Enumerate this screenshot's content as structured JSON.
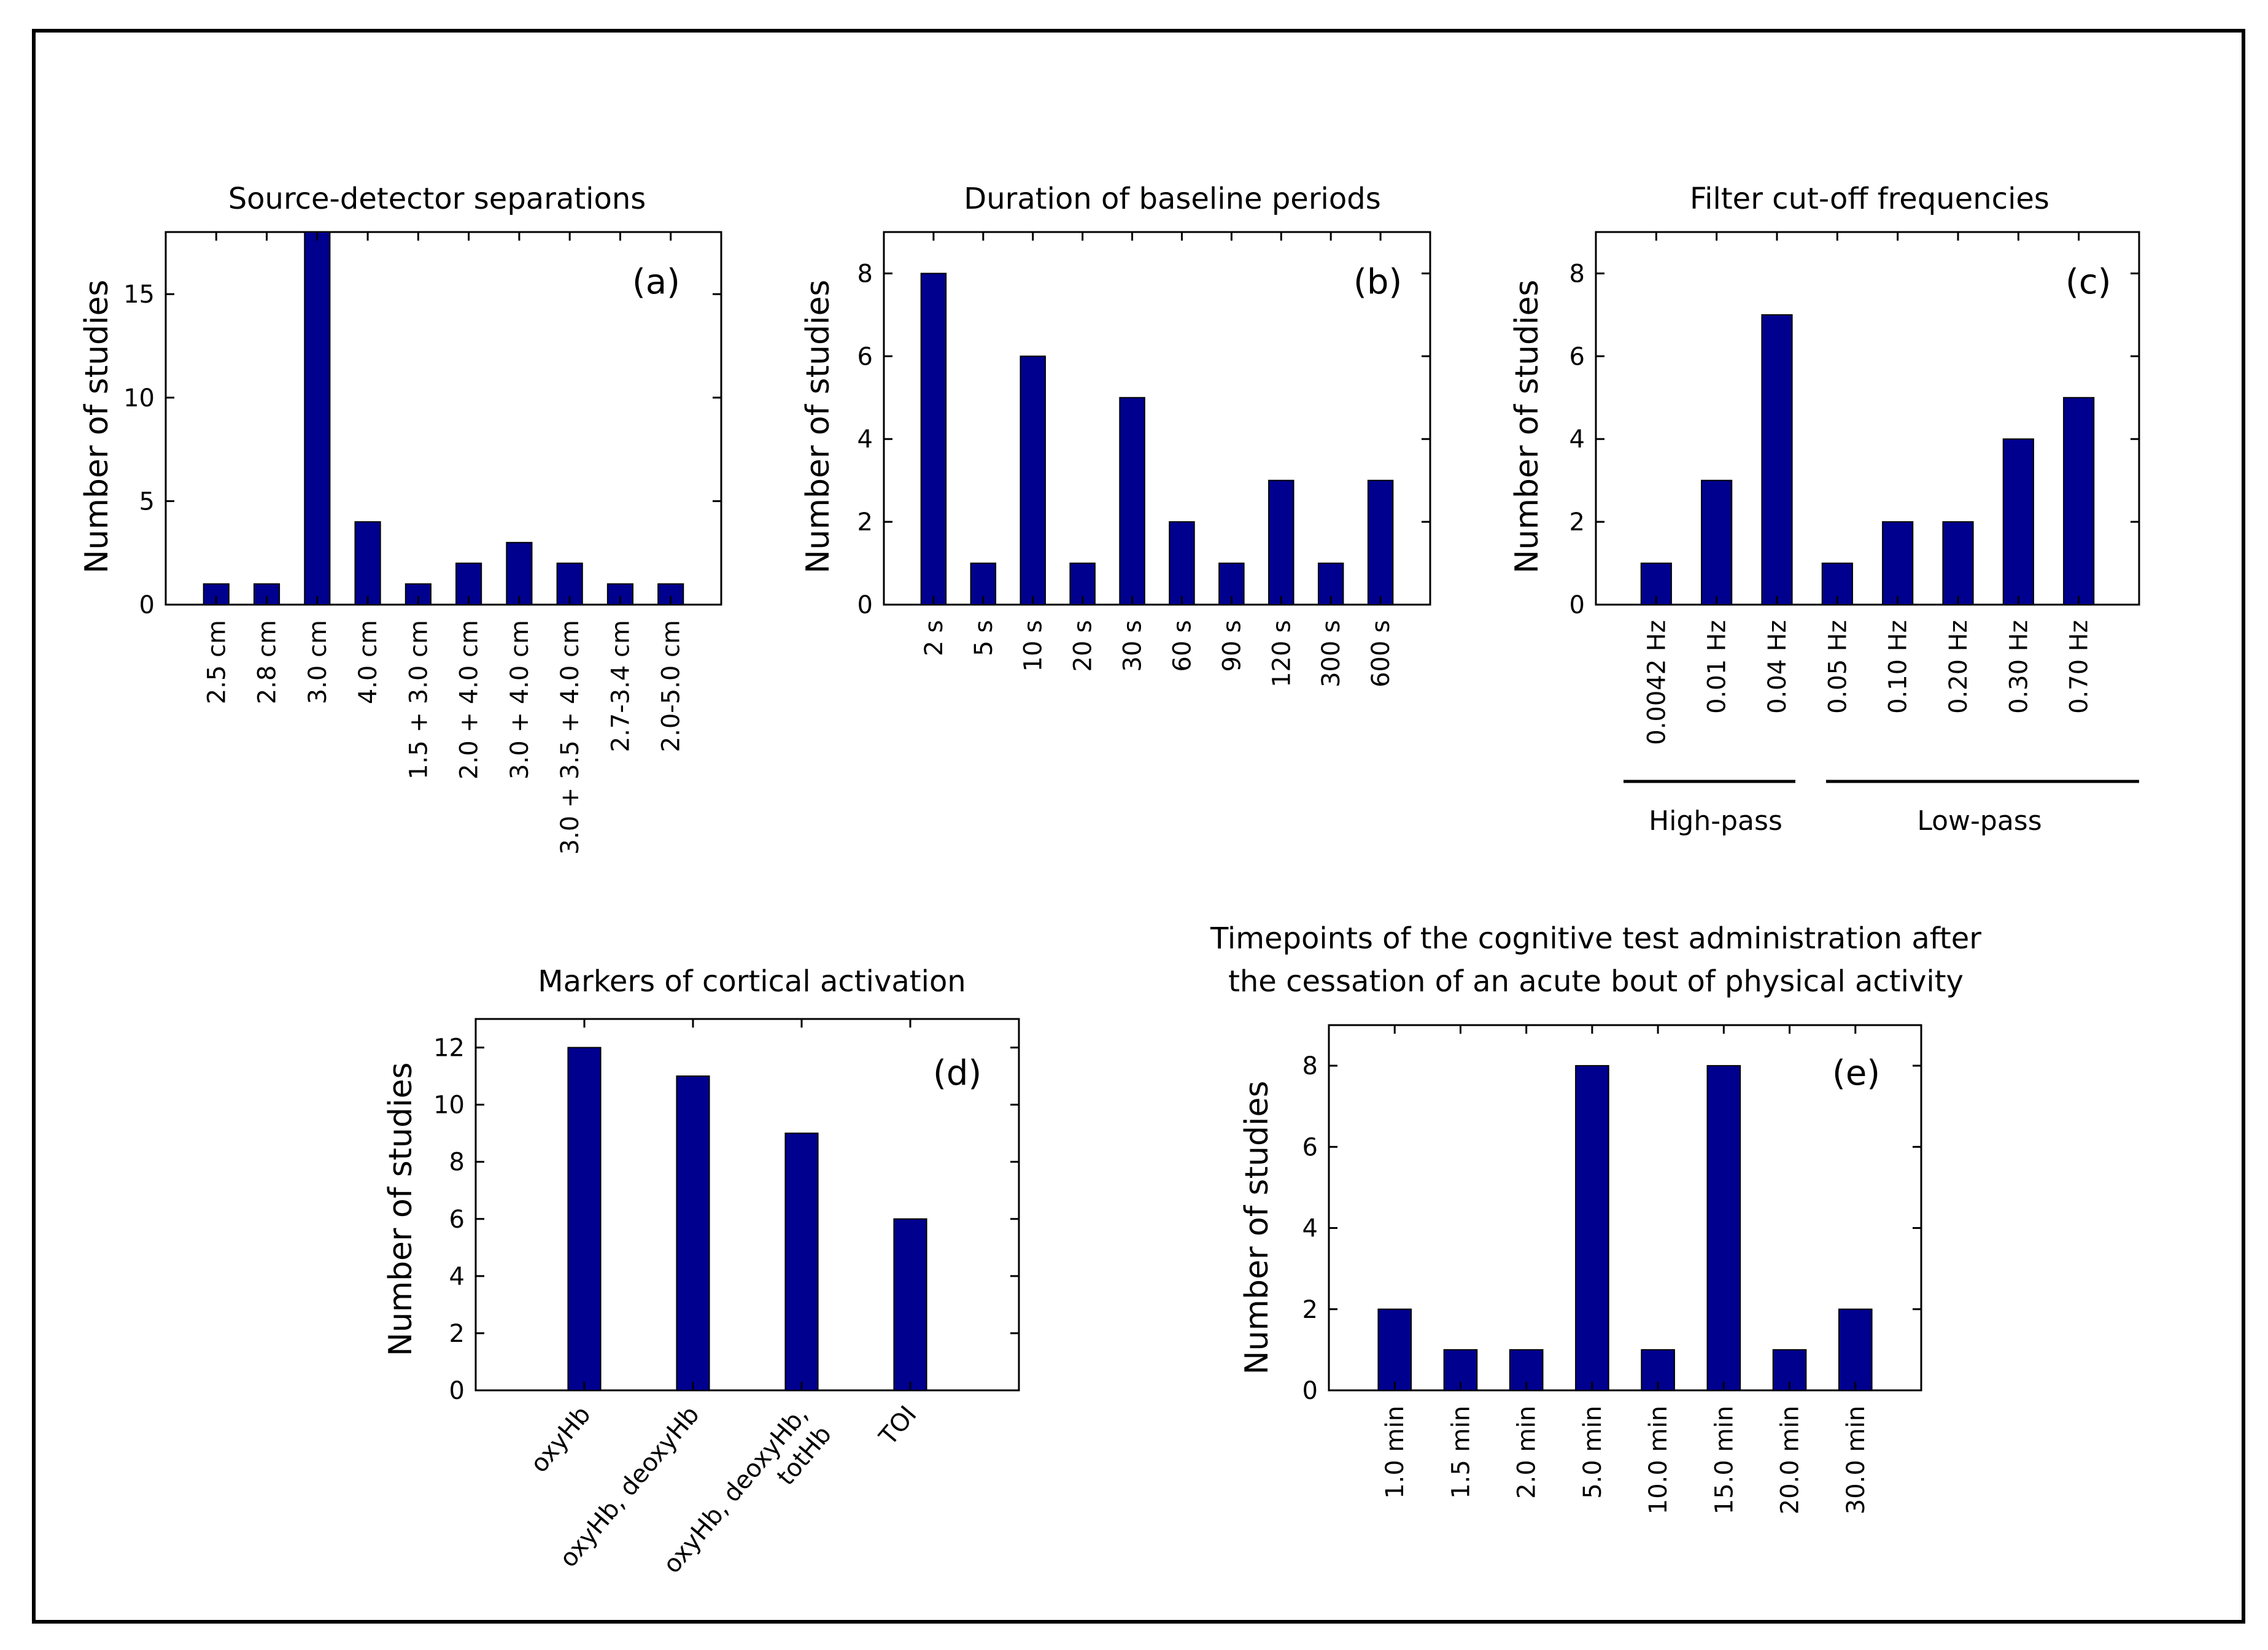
{
  "chart_data": [
    {
      "id": "a",
      "type": "bar",
      "title": "Source-detector separations",
      "panel_label": "(a)",
      "ylabel": "Number of studies",
      "xlabel": "",
      "ylim": [
        0,
        18
      ],
      "yticks": [
        0,
        5,
        10,
        15
      ],
      "categories": [
        "2.5 cm",
        "2.8 cm",
        "3.0 cm",
        "4.0 cm",
        "1.5 + 3.0 cm",
        "2.0 + 4.0 cm",
        "3.0 + 4.0 cm",
        "3.0 + 3.5 + 4.0 cm",
        "2.7-3.4 cm",
        "2.0-5.0 cm"
      ],
      "values": [
        1,
        1,
        18,
        4,
        1,
        2,
        3,
        2,
        1,
        1
      ],
      "legend": "none",
      "grid": false
    },
    {
      "id": "b",
      "type": "bar",
      "title": "Duration of baseline periods",
      "panel_label": "(b)",
      "ylabel": "Number of studies",
      "xlabel": "",
      "ylim": [
        0,
        9
      ],
      "yticks": [
        0,
        2,
        4,
        6,
        8
      ],
      "categories": [
        "2 s",
        "5 s",
        "10 s",
        "20 s",
        "30 s",
        "60 s",
        "90 s",
        "120 s",
        "300 s",
        "600 s"
      ],
      "values": [
        8,
        1,
        6,
        1,
        5,
        2,
        1,
        3,
        1,
        3
      ],
      "legend": "none",
      "grid": false
    },
    {
      "id": "c",
      "type": "bar",
      "title": "Filter cut-off frequencies",
      "panel_label": "(c)",
      "ylabel": "Number of studies",
      "xlabel": "",
      "ylim": [
        0,
        9
      ],
      "yticks": [
        0,
        2,
        4,
        6,
        8
      ],
      "categories": [
        "0.0042 Hz",
        "0.01 Hz",
        "0.04 Hz",
        "0.05 Hz",
        "0.10 Hz",
        "0.20 Hz",
        "0.30 Hz",
        "0.70 Hz"
      ],
      "values": [
        1,
        3,
        7,
        1,
        2,
        2,
        4,
        5
      ],
      "groups": [
        {
          "label": "High-pass",
          "from": 0,
          "to": 2
        },
        {
          "label": "Low-pass",
          "from": 3,
          "to": 7
        }
      ],
      "legend": "none",
      "grid": false
    },
    {
      "id": "d",
      "type": "bar",
      "title": "Markers of cortical activation",
      "panel_label": "(d)",
      "ylabel": "Number of studies",
      "xlabel": "",
      "ylim": [
        0,
        13
      ],
      "yticks": [
        0,
        2,
        4,
        6,
        8,
        10,
        12
      ],
      "categories": [
        "oxyHb",
        "oxyHb, deoxyHb",
        "oxyHb, deoxyHb, totHb",
        "TOI"
      ],
      "category_lines": [
        [
          "oxyHb"
        ],
        [
          "oxyHb, deoxyHb"
        ],
        [
          "oxyHb, deoxyHb,",
          "totHb"
        ],
        [
          "TOI"
        ]
      ],
      "values": [
        12,
        11,
        9,
        6
      ],
      "legend": "none",
      "grid": false
    },
    {
      "id": "e",
      "type": "bar",
      "title": "Timepoints of the cognitive test administration after the cessation of an acute bout of physical activity",
      "title_lines": [
        "Timepoints of the cognitive test administration after",
        "the cessation of an acute bout of physical activity"
      ],
      "panel_label": "(e)",
      "ylabel": "Number of studies",
      "xlabel": "",
      "ylim": [
        0,
        9
      ],
      "yticks": [
        0,
        2,
        4,
        6,
        8
      ],
      "categories": [
        "1.0 min",
        "1.5 min",
        "2.0 min",
        "5.0 min",
        "10.0 min",
        "15.0 min",
        "20.0 min",
        "30.0 min"
      ],
      "values": [
        2,
        1,
        1,
        8,
        1,
        8,
        1,
        2
      ],
      "legend": "none",
      "grid": false
    }
  ]
}
